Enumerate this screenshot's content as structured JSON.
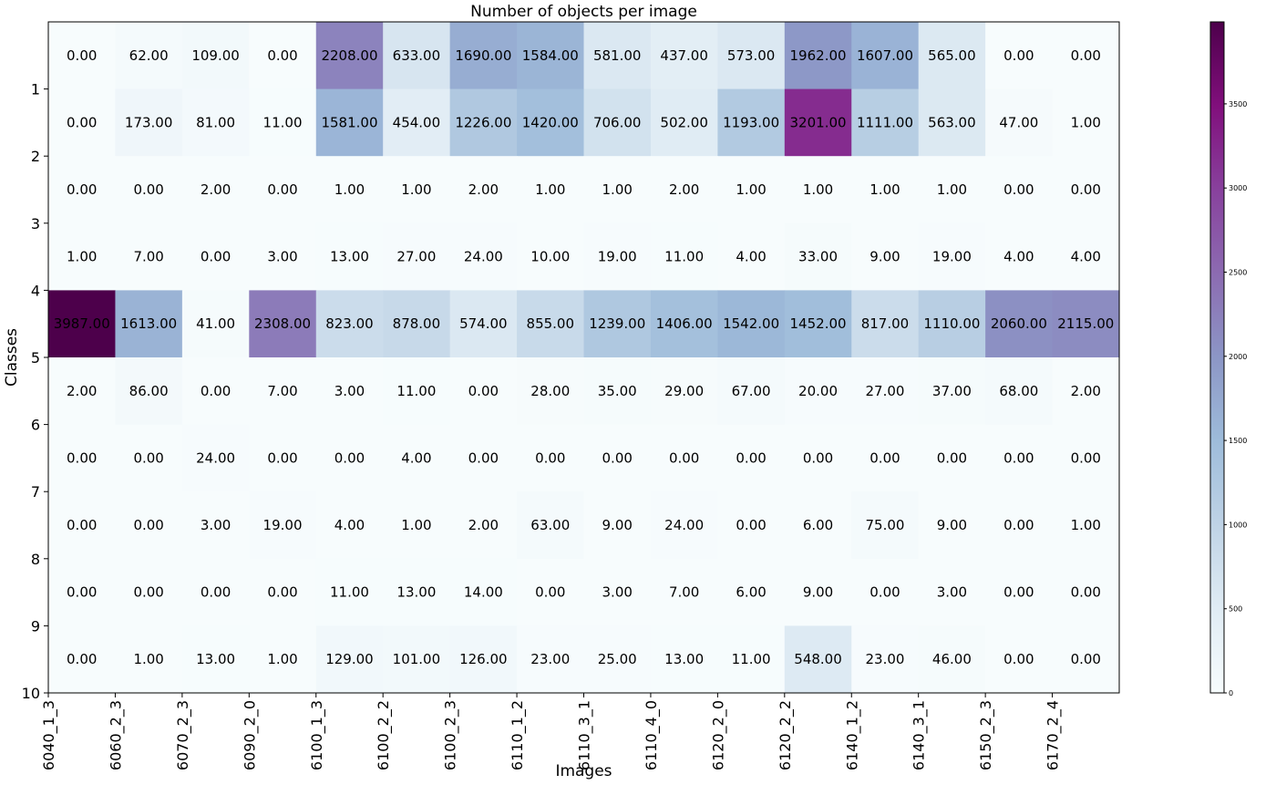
{
  "chart_data": {
    "type": "heatmap",
    "title": "Number of objects per image",
    "xlabel": "Images",
    "ylabel": "Classes",
    "x_tick_labels": [
      "6040_1_3",
      "6060_2_3",
      "6070_2_3",
      "6090_2_0",
      "6100_1_3",
      "6100_2_2",
      "6100_2_3",
      "6110_1_2",
      "6110_3_1",
      "6110_4_0",
      "6120_2_0",
      "6120_2_2",
      "6140_1_2",
      "6140_3_1",
      "6150_2_3",
      "6170_2_4"
    ],
    "columns": 16,
    "y_tick_labels": [
      "1",
      "2",
      "3",
      "4",
      "5",
      "6",
      "7",
      "8",
      "9",
      "10"
    ],
    "values": [
      [
        0,
        62,
        109,
        0,
        2208,
        633,
        1690,
        1584,
        581,
        437,
        573,
        1962,
        1607,
        565,
        0,
        0
      ],
      [
        0,
        173,
        81,
        11,
        1581,
        454,
        1226,
        1420,
        706,
        502,
        1193,
        3201,
        1111,
        563,
        47,
        1
      ],
      [
        0,
        0,
        2,
        0,
        1,
        1,
        2,
        1,
        1,
        2,
        1,
        1,
        1,
        1,
        0,
        0
      ],
      [
        1,
        7,
        0,
        3,
        13,
        27,
        24,
        10,
        19,
        11,
        4,
        33,
        9,
        19,
        4,
        4
      ],
      [
        3987,
        1613,
        41,
        2308,
        823,
        878,
        574,
        855,
        1239,
        1406,
        1542,
        1452,
        817,
        1110,
        2060,
        2115
      ],
      [
        2,
        86,
        0,
        7,
        3,
        11,
        0,
        28,
        35,
        29,
        67,
        20,
        27,
        37,
        68,
        2
      ],
      [
        0,
        0,
        24,
        0,
        0,
        4,
        0,
        0,
        0,
        0,
        0,
        0,
        0,
        0,
        0,
        0
      ],
      [
        0,
        0,
        3,
        19,
        4,
        1,
        2,
        63,
        9,
        24,
        0,
        6,
        75,
        9,
        0,
        1
      ],
      [
        0,
        0,
        0,
        0,
        11,
        13,
        14,
        0,
        3,
        7,
        6,
        9,
        0,
        3,
        0,
        0
      ],
      [
        0,
        1,
        13,
        1,
        129,
        101,
        126,
        23,
        25,
        13,
        11,
        548,
        23,
        46,
        0,
        0
      ]
    ],
    "value_format_decimals": 2,
    "colormap": "BuPu",
    "color_range": [
      0,
      3987
    ],
    "colorbar_ticks": [
      0,
      500,
      1000,
      1500,
      2000,
      2500,
      3000,
      3500
    ],
    "colorbar_ticks_text": [
      "0",
      "500",
      "1000",
      "1500",
      "2000",
      "2500",
      "3000",
      "3500"
    ],
    "colors": {
      "colormap_stops": [
        "#f7fcfd",
        "#e0ecf4",
        "#bfd3e6",
        "#9ebcda",
        "#8c96c6",
        "#8c6bb1",
        "#88419d",
        "#810f7c",
        "#4d004b"
      ],
      "text": "#000000",
      "background": "#ffffff"
    }
  }
}
